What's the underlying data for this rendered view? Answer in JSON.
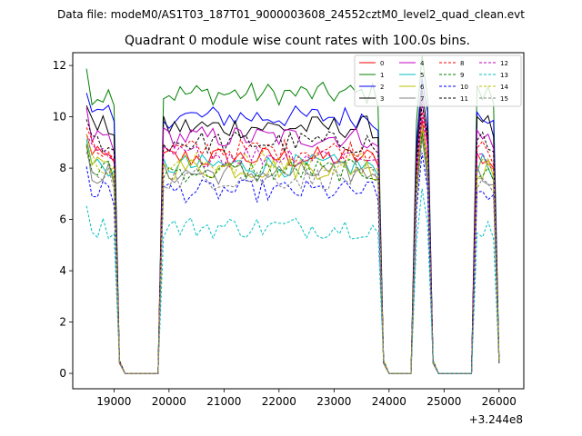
{
  "suptitle": "Data file: modeM0/AS1T03_187T01_9000003608_24552cztM0_level2_quad_clean.evt",
  "chart_data": {
    "type": "line",
    "title": "Quadrant 0 module wise count rates with 100.0s bins.",
    "xlabel": "",
    "ylabel": "",
    "x_offset_label": "+3.244e8",
    "xlim": [
      18250,
      26450
    ],
    "ylim": [
      -0.6,
      12.5
    ],
    "xticks": [
      19000,
      20000,
      21000,
      22000,
      23000,
      24000,
      25000,
      26000
    ],
    "xtick_labels": [
      "19000",
      "20000",
      "21000",
      "22000",
      "23000",
      "24000",
      "25000",
      "26000"
    ],
    "yticks": [
      0,
      2,
      4,
      6,
      8,
      10,
      12
    ],
    "ytick_labels": [
      "0",
      "2",
      "4",
      "6",
      "8",
      "10",
      "12"
    ],
    "legend_position": "top-right",
    "segments": [
      {
        "start": 18500,
        "end": 19000,
        "state": "on"
      },
      {
        "start": 19100,
        "end": 19800,
        "state": "off"
      },
      {
        "start": 19900,
        "end": 23800,
        "state": "on"
      },
      {
        "start": 23900,
        "end": 24400,
        "state": "off"
      },
      {
        "start": 24500,
        "end": 24700,
        "state": "on"
      },
      {
        "start": 24800,
        "end": 25500,
        "state": "off"
      },
      {
        "start": 25600,
        "end": 25900,
        "state": "on"
      },
      {
        "start": 26000,
        "end": 26000,
        "state": "off"
      }
    ],
    "series": [
      {
        "name": "0",
        "color": "#ff0000",
        "dash": "solid",
        "level": 8.4
      },
      {
        "name": "1",
        "color": "#008000",
        "dash": "solid",
        "level": 10.9
      },
      {
        "name": "2",
        "color": "#0000ff",
        "dash": "solid",
        "level": 10.0
      },
      {
        "name": "3",
        "color": "#000000",
        "dash": "solid",
        "level": 9.6
      },
      {
        "name": "4",
        "color": "#c000c0",
        "dash": "solid",
        "level": 9.2
      },
      {
        "name": "5",
        "color": "#00bfbf",
        "dash": "solid",
        "level": 8.1
      },
      {
        "name": "6",
        "color": "#bfbf00",
        "dash": "solid",
        "level": 8.0
      },
      {
        "name": "7",
        "color": "#808080",
        "dash": "solid",
        "level": 7.8
      },
      {
        "name": "8",
        "color": "#ff0000",
        "dash": "dashed",
        "level": 8.7
      },
      {
        "name": "9",
        "color": "#008000",
        "dash": "dashed",
        "level": 7.9
      },
      {
        "name": "10",
        "color": "#0000ff",
        "dash": "dashed",
        "level": 7.1
      },
      {
        "name": "11",
        "color": "#000000",
        "dash": "dashed",
        "level": 9.0
      },
      {
        "name": "12",
        "color": "#c000c0",
        "dash": "dashed",
        "level": 8.5
      },
      {
        "name": "13",
        "color": "#00bfbf",
        "dash": "dashed",
        "level": 5.7
      },
      {
        "name": "14",
        "color": "#bfbf00",
        "dash": "dashed",
        "level": 8.2
      },
      {
        "name": "15",
        "color": "#808080",
        "dash": "dashed",
        "level": 7.6
      }
    ]
  }
}
